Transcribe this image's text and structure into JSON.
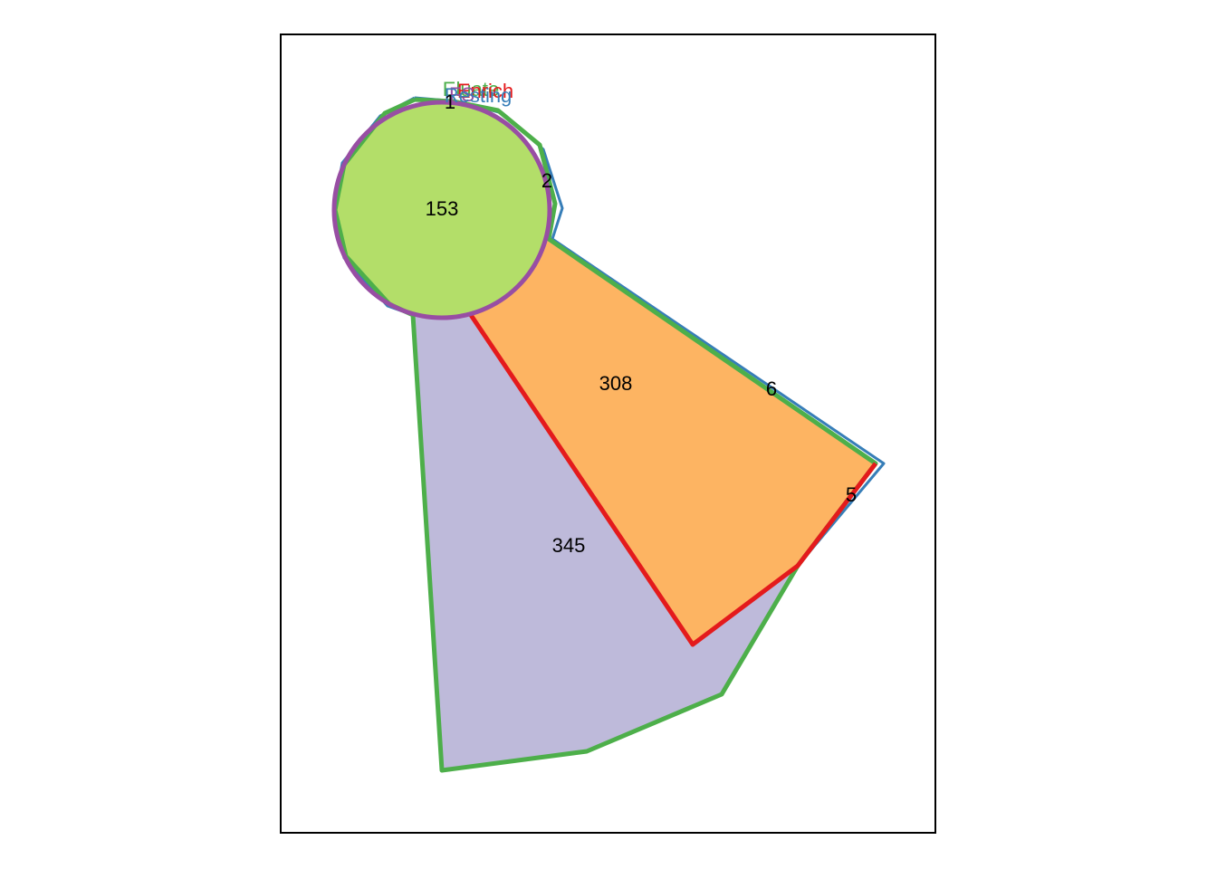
{
  "diagram": {
    "type": "venn",
    "sets": [
      {
        "name": "Eluate",
        "color": "#4DAF4A"
      },
      {
        "name": "Enrich",
        "color": "#E41A1C"
      },
      {
        "name": "FS",
        "color": "#984EA3"
      },
      {
        "name": "Resting",
        "color": "#377EB8"
      }
    ],
    "regions": [
      {
        "id": "circle-center",
        "count": "153",
        "fill": "#B3DE69"
      },
      {
        "id": "orange-wedge",
        "count": "308",
        "fill": "#FDB462"
      },
      {
        "id": "purple-wedge",
        "count": "345",
        "fill": "#BEBADA"
      },
      {
        "id": "top-sliver",
        "count": "1"
      },
      {
        "id": "right-notch",
        "count": "2"
      },
      {
        "id": "edge-sliver-upper",
        "count": "6"
      },
      {
        "id": "edge-sliver-lower",
        "count": "5"
      }
    ]
  }
}
